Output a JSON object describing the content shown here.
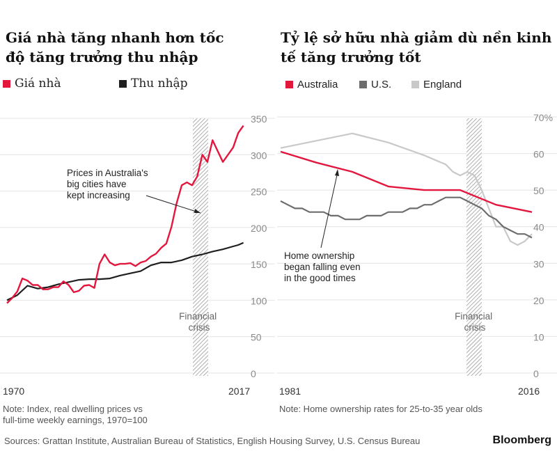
{
  "brand": "Bloomberg",
  "sources": "Sources: Grattan Institute, Australian Bureau of Statistics, English Housing Survey, U.S. Census Bureau",
  "chart_data": [
    {
      "type": "line",
      "title": "Giá nhà tăng nhanh hơn tốc độ tăng trưởng thu nhập",
      "title_lines": [
        "Giá nhà tăng nhanh hơn tốc",
        "độ tăng trưởng thu nhập"
      ],
      "legend": [
        "Giá nhà",
        "Thu nhập"
      ],
      "colors": {
        "price": "#e3173e",
        "income": "#1f1f1f"
      },
      "x_labels": [
        "1970",
        "2017"
      ],
      "xlim": [
        1970,
        2017
      ],
      "ylim": [
        0,
        350
      ],
      "yticks": [
        0,
        50,
        100,
        150,
        200,
        250,
        300,
        350
      ],
      "shade_label": [
        "Financial",
        "crisis"
      ],
      "annotation": [
        "Prices in Australia's",
        "big cities have",
        "kept increasing"
      ],
      "note": [
        "Note: Index, real dwelling prices vs",
        "full-time weekly earnings, 1970=100"
      ],
      "series": [
        {
          "name": "Giá nhà",
          "points": [
            [
              1970,
              96
            ],
            [
              1971,
              103
            ],
            [
              1972,
              112
            ],
            [
              1973,
              130
            ],
            [
              1974,
              127
            ],
            [
              1975,
              121
            ],
            [
              1976,
              121
            ],
            [
              1977,
              115
            ],
            [
              1978,
              115
            ],
            [
              1979,
              118
            ],
            [
              1980,
              118
            ],
            [
              1981,
              126
            ],
            [
              1982,
              121
            ],
            [
              1983,
              111
            ],
            [
              1984,
              113
            ],
            [
              1985,
              120
            ],
            [
              1986,
              121
            ],
            [
              1987,
              117
            ],
            [
              1988,
              150
            ],
            [
              1989,
              163
            ],
            [
              1990,
              152
            ],
            [
              1991,
              148
            ],
            [
              1992,
              150
            ],
            [
              1993,
              150
            ],
            [
              1994,
              151
            ],
            [
              1995,
              147
            ],
            [
              1996,
              152
            ],
            [
              1997,
              154
            ],
            [
              1998,
              160
            ],
            [
              1999,
              164
            ],
            [
              2000,
              172
            ],
            [
              2001,
              178
            ],
            [
              2002,
              201
            ],
            [
              2003,
              233
            ],
            [
              2004,
              258
            ],
            [
              2005,
              262
            ],
            [
              2006,
              258
            ],
            [
              2007,
              270
            ],
            [
              2008,
              300
            ],
            [
              2009,
              290
            ],
            [
              2010,
              320
            ],
            [
              2011,
              305
            ],
            [
              2012,
              290
            ],
            [
              2013,
              300
            ],
            [
              2014,
              310
            ],
            [
              2015,
              330
            ],
            [
              2016,
              340
            ]
          ]
        },
        {
          "name": "Thu nhập",
          "points": [
            [
              1970,
              100
            ],
            [
              1972,
              107
            ],
            [
              1974,
              120
            ],
            [
              1976,
              116
            ],
            [
              1978,
              118
            ],
            [
              1980,
              122
            ],
            [
              1982,
              125
            ],
            [
              1984,
              128
            ],
            [
              1986,
              129
            ],
            [
              1988,
              129
            ],
            [
              1990,
              130
            ],
            [
              1992,
              134
            ],
            [
              1994,
              137
            ],
            [
              1996,
              140
            ],
            [
              1998,
              148
            ],
            [
              2000,
              152
            ],
            [
              2002,
              152
            ],
            [
              2004,
              155
            ],
            [
              2006,
              160
            ],
            [
              2008,
              163
            ],
            [
              2010,
              167
            ],
            [
              2012,
              170
            ],
            [
              2014,
              174
            ],
            [
              2015,
              176
            ],
            [
              2016,
              179
            ]
          ]
        }
      ]
    },
    {
      "type": "line",
      "title": "Tỷ lệ sở hữu nhà giảm dù nền kinh tế tăng trưởng tốt",
      "title_lines": [
        "Tỷ lệ sở hữu nhà giảm dù nền kinh",
        "tế tăng trưởng tốt"
      ],
      "legend": [
        "Australia",
        "U.S.",
        "England"
      ],
      "colors": {
        "Australia": "#e3173e",
        "U.S.": "#6d6d6d",
        "England": "#c9c9c9"
      },
      "x_labels": [
        "1981",
        "2016"
      ],
      "xlim": [
        1981,
        2016
      ],
      "ylim": [
        0,
        70
      ],
      "yticks": [
        "0",
        "10",
        "20",
        "30",
        "40",
        "50",
        "60",
        "70%"
      ],
      "shade_label": [
        "Financial",
        "crisis"
      ],
      "annotation": [
        "Home ownership",
        "began falling even",
        "in the good times"
      ],
      "note": [
        "Note: Home ownership rates for 25-to-35 year olds"
      ],
      "series": [
        {
          "name": "England",
          "points": [
            [
              1981,
              61.5
            ],
            [
              1991,
              65.5
            ],
            [
              1996,
              63
            ],
            [
              2001,
              59.5
            ],
            [
              2004,
              57
            ],
            [
              2005,
              55
            ],
            [
              2006,
              54
            ],
            [
              2007,
              55
            ],
            [
              2008,
              54
            ],
            [
              2009,
              50
            ],
            [
              2010,
              45
            ],
            [
              2011,
              40
            ],
            [
              2012,
              40
            ],
            [
              2013,
              36
            ],
            [
              2014,
              35
            ],
            [
              2015,
              36
            ],
            [
              2016,
              38
            ]
          ]
        },
        {
          "name": "U.S.",
          "points": [
            [
              1981,
              47
            ],
            [
              1982,
              46
            ],
            [
              1983,
              45
            ],
            [
              1984,
              45
            ],
            [
              1985,
              44
            ],
            [
              1986,
              44
            ],
            [
              1987,
              44
            ],
            [
              1988,
              43
            ],
            [
              1989,
              43
            ],
            [
              1990,
              42
            ],
            [
              1991,
              42
            ],
            [
              1992,
              42
            ],
            [
              1993,
              43
            ],
            [
              1994,
              43
            ],
            [
              1995,
              43
            ],
            [
              1996,
              44
            ],
            [
              1997,
              44
            ],
            [
              1998,
              44
            ],
            [
              1999,
              45
            ],
            [
              2000,
              45
            ],
            [
              2001,
              46
            ],
            [
              2002,
              46
            ],
            [
              2003,
              47
            ],
            [
              2004,
              48
            ],
            [
              2005,
              48
            ],
            [
              2006,
              48
            ],
            [
              2007,
              47
            ],
            [
              2008,
              46
            ],
            [
              2009,
              45
            ],
            [
              2010,
              43
            ],
            [
              2011,
              42
            ],
            [
              2012,
              40
            ],
            [
              2013,
              39
            ],
            [
              2014,
              38
            ],
            [
              2015,
              38
            ],
            [
              2016,
              37
            ]
          ]
        },
        {
          "name": "Australia",
          "points": [
            [
              1981,
              60.5
            ],
            [
              1986,
              57.5
            ],
            [
              1991,
              55
            ],
            [
              1996,
              51
            ],
            [
              2001,
              50
            ],
            [
              2006,
              50
            ],
            [
              2011,
              46
            ],
            [
              2016,
              44
            ]
          ]
        }
      ]
    }
  ]
}
